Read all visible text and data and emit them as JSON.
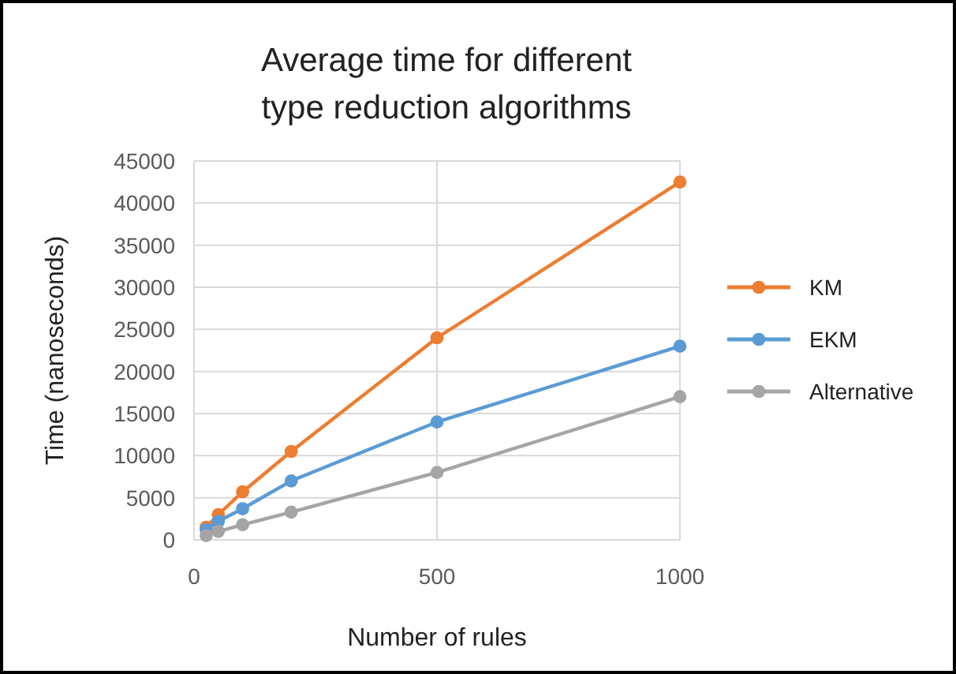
{
  "chart_data": {
    "type": "line",
    "title": "Average time  for different type reduction algorithms",
    "xlabel": "Number of rules",
    "ylabel": "Time  (nanoseconds)",
    "x": [
      25,
      50,
      100,
      200,
      500,
      1000
    ],
    "series": [
      {
        "name": "KM",
        "color": "#ed7d31",
        "values": [
          1500,
          3000,
          5700,
          10500,
          24000,
          42500
        ]
      },
      {
        "name": "EKM",
        "color": "#5b9bd5",
        "values": [
          1200,
          2200,
          3700,
          7000,
          14000,
          23000
        ]
      },
      {
        "name": "Alternative",
        "color": "#a5a5a5",
        "values": [
          500,
          1000,
          1800,
          3300,
          8000,
          17000
        ]
      }
    ],
    "xlim": [
      0,
      1000
    ],
    "xticks": [
      0,
      500,
      1000
    ],
    "ylim": [
      0,
      45000
    ],
    "yticks": [
      0,
      5000,
      10000,
      15000,
      20000,
      25000,
      30000,
      35000,
      40000,
      45000
    ],
    "grid": true,
    "legend": "right",
    "marker": "circle",
    "line_style": "solid"
  }
}
